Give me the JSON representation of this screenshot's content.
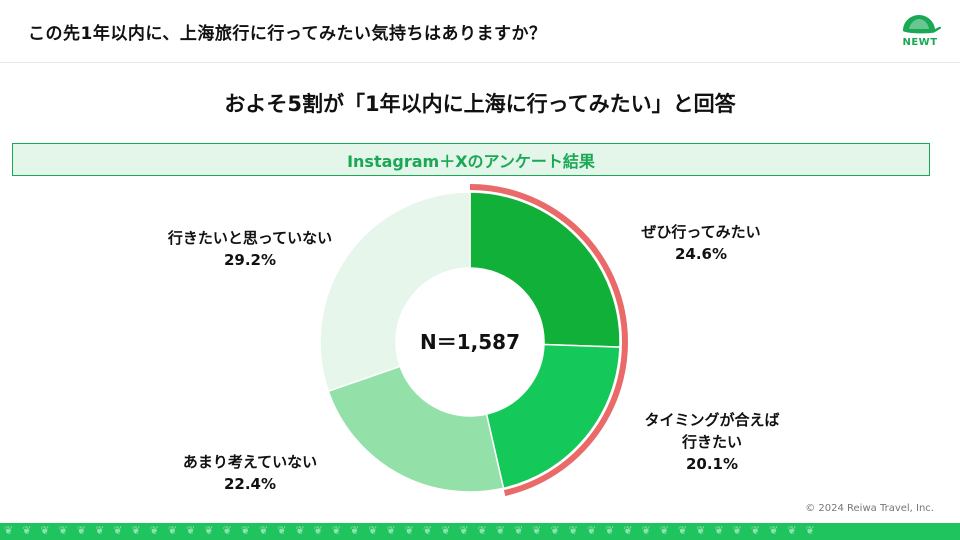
{
  "header": {
    "title": "この先1年以内に、上海旅行に行ってみたい気持ちはありますか？",
    "logo_text": "NEWT"
  },
  "subtitle": "およそ5割が「1年以内に上海に行ってみたい」と回答",
  "banner": "Instagram＋Xのアンケート結果",
  "copyright": "© 2024 Reiwa Travel, Inc.",
  "footer_pattern": "❦❦❦❦❦❦❦❦❦❦❦❦❦❦❦❦❦❦❦❦❦❦❦❦❦❦❦❦❦❦❦❦❦❦❦❦❦❦❦❦❦❦❦❦❦",
  "colors": {
    "brand_green": "#1aa855",
    "highlight_ring": "#ea6a6a"
  },
  "chart_data": {
    "type": "pie",
    "donut": true,
    "center_label": "N＝1,587",
    "slices": [
      {
        "label_lines": [
          "ぜひ行ってみたい"
        ],
        "value": 24.6,
        "value_text": "24.6%",
        "color": "#11b139",
        "highlight": true
      },
      {
        "label_lines": [
          "タイミングが合えば",
          "行きたい"
        ],
        "value": 20.1,
        "value_text": "20.1%",
        "color": "#14c859",
        "highlight": true
      },
      {
        "label_lines": [
          "あまり考えていない"
        ],
        "value": 22.4,
        "value_text": "22.4%",
        "color": "#93e0a9",
        "highlight": false
      },
      {
        "label_lines": [
          "行きたいと思っていない"
        ],
        "value": 29.2,
        "value_text": "29.2%",
        "color": "#e6f6ea",
        "highlight": false
      }
    ]
  }
}
